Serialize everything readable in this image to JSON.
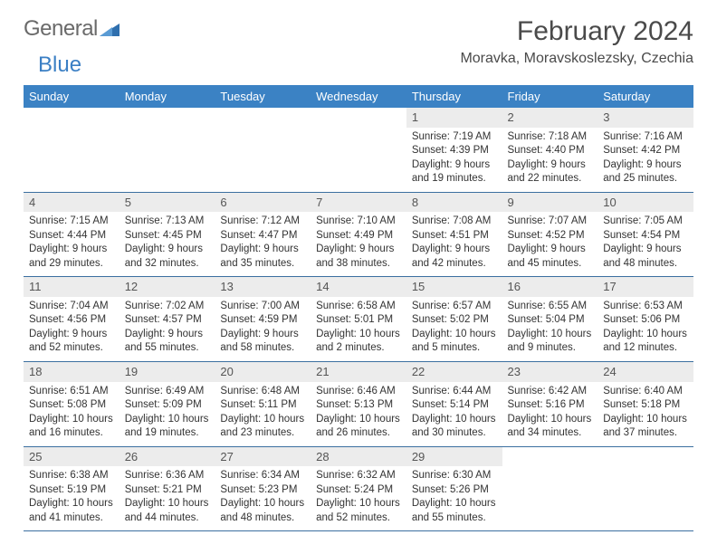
{
  "brand": {
    "word1": "General",
    "word2": "Blue"
  },
  "title": "February 2024",
  "location": "Moravka, Moravskoslezsky, Czechia",
  "weekdays": [
    "Sunday",
    "Monday",
    "Tuesday",
    "Wednesday",
    "Thursday",
    "Friday",
    "Saturday"
  ],
  "colors": {
    "header_bg": "#3b82c4",
    "header_text": "#ffffff",
    "daynum_bg": "#ececec",
    "border": "#3b6fa0",
    "title_color": "#4a4a4a",
    "logo_gray": "#6a6a6a",
    "logo_blue": "#3b7fc4"
  },
  "weeks": [
    [
      {
        "empty": true
      },
      {
        "empty": true
      },
      {
        "empty": true
      },
      {
        "empty": true
      },
      {
        "num": "1",
        "sunrise": "7:19 AM",
        "sunset": "4:39 PM",
        "daylight": "9 hours and 19 minutes."
      },
      {
        "num": "2",
        "sunrise": "7:18 AM",
        "sunset": "4:40 PM",
        "daylight": "9 hours and 22 minutes."
      },
      {
        "num": "3",
        "sunrise": "7:16 AM",
        "sunset": "4:42 PM",
        "daylight": "9 hours and 25 minutes."
      }
    ],
    [
      {
        "num": "4",
        "sunrise": "7:15 AM",
        "sunset": "4:44 PM",
        "daylight": "9 hours and 29 minutes."
      },
      {
        "num": "5",
        "sunrise": "7:13 AM",
        "sunset": "4:45 PM",
        "daylight": "9 hours and 32 minutes."
      },
      {
        "num": "6",
        "sunrise": "7:12 AM",
        "sunset": "4:47 PM",
        "daylight": "9 hours and 35 minutes."
      },
      {
        "num": "7",
        "sunrise": "7:10 AM",
        "sunset": "4:49 PM",
        "daylight": "9 hours and 38 minutes."
      },
      {
        "num": "8",
        "sunrise": "7:08 AM",
        "sunset": "4:51 PM",
        "daylight": "9 hours and 42 minutes."
      },
      {
        "num": "9",
        "sunrise": "7:07 AM",
        "sunset": "4:52 PM",
        "daylight": "9 hours and 45 minutes."
      },
      {
        "num": "10",
        "sunrise": "7:05 AM",
        "sunset": "4:54 PM",
        "daylight": "9 hours and 48 minutes."
      }
    ],
    [
      {
        "num": "11",
        "sunrise": "7:04 AM",
        "sunset": "4:56 PM",
        "daylight": "9 hours and 52 minutes."
      },
      {
        "num": "12",
        "sunrise": "7:02 AM",
        "sunset": "4:57 PM",
        "daylight": "9 hours and 55 minutes."
      },
      {
        "num": "13",
        "sunrise": "7:00 AM",
        "sunset": "4:59 PM",
        "daylight": "9 hours and 58 minutes."
      },
      {
        "num": "14",
        "sunrise": "6:58 AM",
        "sunset": "5:01 PM",
        "daylight": "10 hours and 2 minutes."
      },
      {
        "num": "15",
        "sunrise": "6:57 AM",
        "sunset": "5:02 PM",
        "daylight": "10 hours and 5 minutes."
      },
      {
        "num": "16",
        "sunrise": "6:55 AM",
        "sunset": "5:04 PM",
        "daylight": "10 hours and 9 minutes."
      },
      {
        "num": "17",
        "sunrise": "6:53 AM",
        "sunset": "5:06 PM",
        "daylight": "10 hours and 12 minutes."
      }
    ],
    [
      {
        "num": "18",
        "sunrise": "6:51 AM",
        "sunset": "5:08 PM",
        "daylight": "10 hours and 16 minutes."
      },
      {
        "num": "19",
        "sunrise": "6:49 AM",
        "sunset": "5:09 PM",
        "daylight": "10 hours and 19 minutes."
      },
      {
        "num": "20",
        "sunrise": "6:48 AM",
        "sunset": "5:11 PM",
        "daylight": "10 hours and 23 minutes."
      },
      {
        "num": "21",
        "sunrise": "6:46 AM",
        "sunset": "5:13 PM",
        "daylight": "10 hours and 26 minutes."
      },
      {
        "num": "22",
        "sunrise": "6:44 AM",
        "sunset": "5:14 PM",
        "daylight": "10 hours and 30 minutes."
      },
      {
        "num": "23",
        "sunrise": "6:42 AM",
        "sunset": "5:16 PM",
        "daylight": "10 hours and 34 minutes."
      },
      {
        "num": "24",
        "sunrise": "6:40 AM",
        "sunset": "5:18 PM",
        "daylight": "10 hours and 37 minutes."
      }
    ],
    [
      {
        "num": "25",
        "sunrise": "6:38 AM",
        "sunset": "5:19 PM",
        "daylight": "10 hours and 41 minutes."
      },
      {
        "num": "26",
        "sunrise": "6:36 AM",
        "sunset": "5:21 PM",
        "daylight": "10 hours and 44 minutes."
      },
      {
        "num": "27",
        "sunrise": "6:34 AM",
        "sunset": "5:23 PM",
        "daylight": "10 hours and 48 minutes."
      },
      {
        "num": "28",
        "sunrise": "6:32 AM",
        "sunset": "5:24 PM",
        "daylight": "10 hours and 52 minutes."
      },
      {
        "num": "29",
        "sunrise": "6:30 AM",
        "sunset": "5:26 PM",
        "daylight": "10 hours and 55 minutes."
      },
      {
        "empty": true
      },
      {
        "empty": true
      }
    ]
  ],
  "labels": {
    "sunrise": "Sunrise:",
    "sunset": "Sunset:",
    "daylight": "Daylight:"
  }
}
